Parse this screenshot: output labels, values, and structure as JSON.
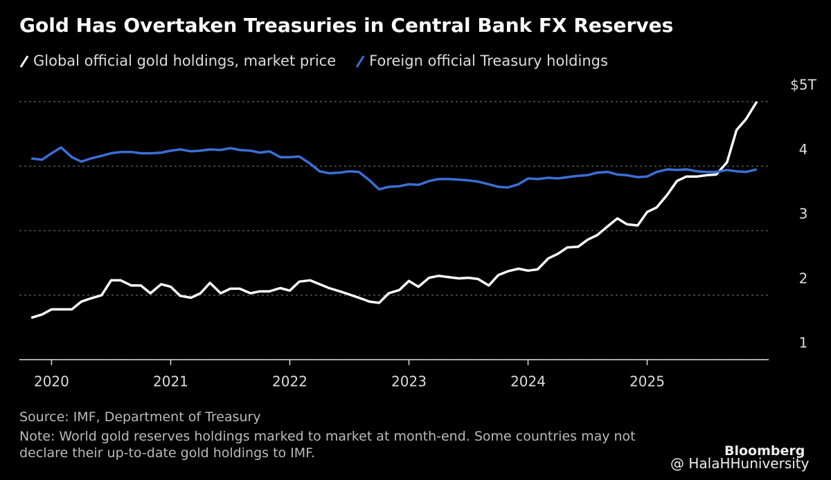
{
  "chart_data": {
    "type": "line",
    "title": "Gold Has Overtaken Treasuries in Central Bank FX Reserves",
    "x": [
      2019.83,
      2019.92,
      2020.0,
      2020.08,
      2020.17,
      2020.25,
      2020.33,
      2020.42,
      2020.5,
      2020.58,
      2020.67,
      2020.75,
      2020.83,
      2020.92,
      2021.0,
      2021.08,
      2021.17,
      2021.25,
      2021.33,
      2021.42,
      2021.5,
      2021.58,
      2021.67,
      2021.75,
      2021.83,
      2021.92,
      2022.0,
      2022.08,
      2022.17,
      2022.25,
      2022.33,
      2022.42,
      2022.5,
      2022.58,
      2022.67,
      2022.75,
      2022.83,
      2022.92,
      2023.0,
      2023.08,
      2023.17,
      2023.25,
      2023.33,
      2023.42,
      2023.5,
      2023.58,
      2023.67,
      2023.75,
      2023.83,
      2023.92,
      2024.0,
      2024.08,
      2024.17,
      2024.25,
      2024.33,
      2024.42,
      2024.5,
      2024.58,
      2024.67,
      2024.75,
      2024.83,
      2024.92,
      2025.0,
      2025.08,
      2025.17,
      2025.25,
      2025.33,
      2025.42,
      2025.5,
      2025.58,
      2025.67,
      2025.75,
      2025.83,
      2025.92
    ],
    "series": [
      {
        "name": "Global official gold holdings, market price",
        "color": "#ffffff",
        "values": [
          1.65,
          1.7,
          1.78,
          1.78,
          1.78,
          1.9,
          1.95,
          2.0,
          2.23,
          2.23,
          2.15,
          2.15,
          2.03,
          2.17,
          2.13,
          1.99,
          1.96,
          2.03,
          2.19,
          2.03,
          2.1,
          2.1,
          2.03,
          2.06,
          2.06,
          2.11,
          2.07,
          2.21,
          2.23,
          2.17,
          2.11,
          2.06,
          2.01,
          1.96,
          1.9,
          1.88,
          2.03,
          2.08,
          2.22,
          2.13,
          2.27,
          2.3,
          2.28,
          2.26,
          2.27,
          2.25,
          2.15,
          2.31,
          2.37,
          2.41,
          2.38,
          2.4,
          2.57,
          2.64,
          2.74,
          2.75,
          2.86,
          2.93,
          3.07,
          3.19,
          3.1,
          3.08,
          3.29,
          3.36,
          3.56,
          3.77,
          3.84,
          3.84,
          3.86,
          3.87,
          4.06,
          4.56,
          4.73,
          5.0
        ]
      },
      {
        "name": "Foreign official Treasury holdings",
        "color": "#3b6fd6",
        "values": [
          4.12,
          4.1,
          4.2,
          4.29,
          4.14,
          4.07,
          4.12,
          4.16,
          4.2,
          4.22,
          4.22,
          4.2,
          4.2,
          4.21,
          4.24,
          4.26,
          4.23,
          4.24,
          4.26,
          4.25,
          4.28,
          4.25,
          4.24,
          4.21,
          4.23,
          4.14,
          4.14,
          4.15,
          4.04,
          3.92,
          3.89,
          3.9,
          3.92,
          3.91,
          3.78,
          3.64,
          3.68,
          3.69,
          3.72,
          3.71,
          3.77,
          3.8,
          3.8,
          3.79,
          3.78,
          3.76,
          3.72,
          3.68,
          3.67,
          3.72,
          3.81,
          3.8,
          3.82,
          3.81,
          3.83,
          3.85,
          3.86,
          3.9,
          3.91,
          3.87,
          3.86,
          3.83,
          3.84,
          3.91,
          3.95,
          3.94,
          3.95,
          3.92,
          3.91,
          3.91,
          3.94,
          3.92,
          3.91,
          3.95
        ]
      }
    ],
    "xlim": [
      2019.73,
      2026.02
    ],
    "xticks": [
      2020,
      2021,
      2022,
      2023,
      2024,
      2025
    ],
    "ylim": [
      1,
      5
    ],
    "yticks": [
      1,
      2,
      3,
      4,
      {
        "value": 5,
        "label": "$5T"
      }
    ],
    "grid": true,
    "source": "Source: IMF, Department of Treasury",
    "note": "Note: World gold reserves holdings marked to market at month-end. Some countries may not declare their up-to-date gold holdings to IMF.",
    "brand": "Bloomberg",
    "watermark": "@ HalaHHuniversity"
  }
}
